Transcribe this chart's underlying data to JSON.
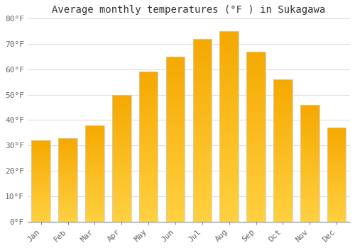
{
  "title": "Average monthly temperatures (°F ) in Sukagawa",
  "months": [
    "Jan",
    "Feb",
    "Mar",
    "Apr",
    "May",
    "Jun",
    "Jul",
    "Aug",
    "Sep",
    "Oct",
    "Nov",
    "Dec"
  ],
  "values": [
    32,
    33,
    38,
    50,
    59,
    65,
    72,
    75,
    67,
    56,
    46,
    37
  ],
  "bar_color_top": "#F5A800",
  "bar_color_bottom": "#FFD040",
  "ylim": [
    0,
    80
  ],
  "yticks": [
    0,
    10,
    20,
    30,
    40,
    50,
    60,
    70,
    80
  ],
  "ytick_labels": [
    "0°F",
    "10°F",
    "20°F",
    "30°F",
    "40°F",
    "50°F",
    "60°F",
    "70°F",
    "80°F"
  ],
  "background_color": "#FFFFFF",
  "grid_color": "#DDDDDD",
  "title_fontsize": 10,
  "tick_fontsize": 8,
  "bar_edge_color": "#CCCCCC",
  "label_color": "#666666"
}
